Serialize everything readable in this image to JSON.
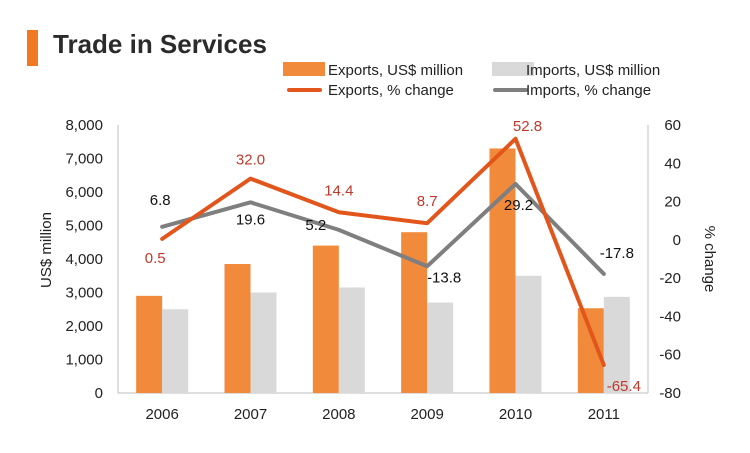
{
  "title": "Trade in Services",
  "colors": {
    "exports_bar": "#f28a3c",
    "imports_bar": "#d9d9d9",
    "exports_line": "#e2561c",
    "imports_line": "#7f7f7f",
    "exports_label": "#c0392b",
    "imports_label": "#111111",
    "accent": "#ef7a22"
  },
  "chart_data": {
    "type": "bar+line",
    "categories": [
      "2006",
      "2007",
      "2008",
      "2009",
      "2010",
      "2011"
    ],
    "series": [
      {
        "name": "Exports, US$ million",
        "type": "bar",
        "axis": "left",
        "values": [
          2900,
          3850,
          4400,
          4800,
          7300,
          2530
        ]
      },
      {
        "name": "Imports, US$ million",
        "type": "bar",
        "axis": "left",
        "values": [
          2500,
          3000,
          3150,
          2700,
          3500,
          2870
        ]
      },
      {
        "name": "Exports, % change",
        "type": "line",
        "axis": "right",
        "values": [
          0.5,
          32.0,
          14.4,
          8.7,
          52.8,
          -65.4
        ],
        "labels": [
          "0.5",
          "32.0",
          "14.4",
          "8.7",
          "52.8",
          "-65.4"
        ]
      },
      {
        "name": "Imports, % change",
        "type": "line",
        "axis": "right",
        "values": [
          6.8,
          19.6,
          5.2,
          -13.8,
          29.2,
          -17.8
        ],
        "labels": [
          "6.8",
          "19.6",
          "5.2",
          "-13.8",
          "29.2",
          "-17.8"
        ]
      }
    ],
    "ylabel": "US$ million",
    "y2label": "% change",
    "ylim": [
      0,
      8000
    ],
    "y2lim": [
      -80,
      60
    ],
    "yticks": [
      "0",
      "1,000",
      "2,000",
      "3,000",
      "4,000",
      "5,000",
      "6,000",
      "7,000",
      "8,000"
    ],
    "y2ticks": [
      "-80",
      "-60",
      "-40",
      "-20",
      "0",
      "20",
      "40",
      "60"
    ],
    "legend_position": "top"
  }
}
